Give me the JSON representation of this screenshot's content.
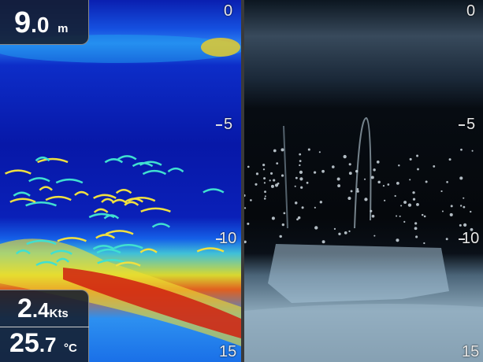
{
  "depth_readout": {
    "whole": "9",
    "decimal": ".0",
    "unit": "m"
  },
  "speed_readout": {
    "whole": "2",
    "decimal": ".4",
    "unit": "Kts"
  },
  "temp_readout": {
    "whole": "25",
    "decimal": ".7",
    "unit": "°C"
  },
  "depth_scale": {
    "labels": [
      "0",
      "5",
      "10",
      "15"
    ],
    "max_m": 15
  },
  "colors": {
    "left_palette_bg": "#0a20b8",
    "right_palette_bg": "#05080c",
    "divider": "#3a3a3a"
  }
}
